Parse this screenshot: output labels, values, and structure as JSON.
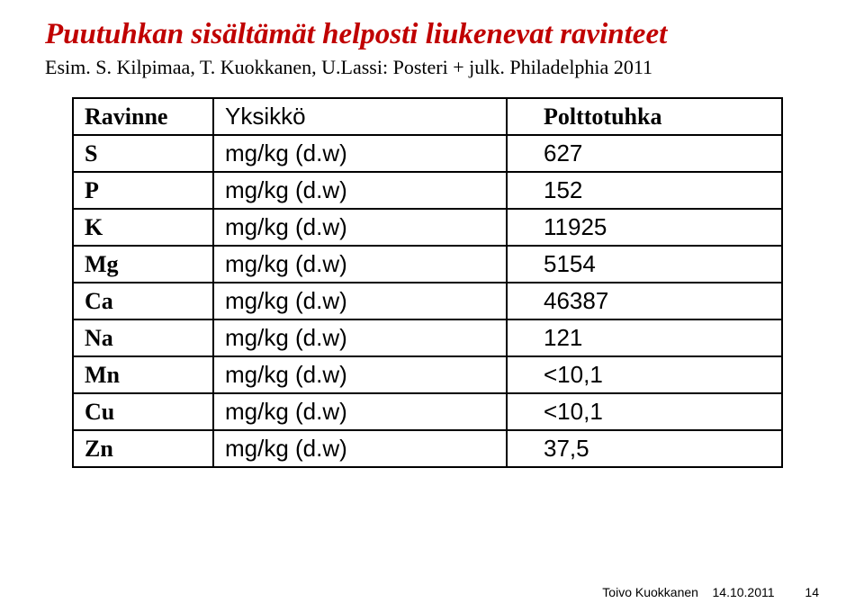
{
  "title": "Puutuhkan sisältämät helposti liukenevat ravinteet",
  "subtitle": "Esim. S. Kilpimaa, T. Kuokkanen, U.Lassi: Posteri + julk. Philadelphia 2011",
  "table": {
    "header": {
      "label": "Ravinne",
      "unit": "Yksikkö",
      "value": "Polttotuhka"
    },
    "rows": [
      {
        "label": "S",
        "unit": "mg/kg (d.w)",
        "value": "627"
      },
      {
        "label": "P",
        "unit": "mg/kg (d.w)",
        "value": "152"
      },
      {
        "label": "K",
        "unit": "mg/kg (d.w)",
        "value": "11925"
      },
      {
        "label": "Mg",
        "unit": "mg/kg (d.w)",
        "value": "5154"
      },
      {
        "label": "Ca",
        "unit": "mg/kg (d.w)",
        "value": "46387"
      },
      {
        "label": "Na",
        "unit": "mg/kg (d.w)",
        "value": "121"
      },
      {
        "label": "Mn",
        "unit": "mg/kg (d.w)",
        "value": "<10,1"
      },
      {
        "label": "Cu",
        "unit": "mg/kg (d.w)",
        "value": "<10,1"
      },
      {
        "label": "Zn",
        "unit": "mg/kg (d.w)",
        "value": " 37,5"
      }
    ]
  },
  "footer": {
    "author": "Toivo Kuokkanen",
    "date": "14.10.2011",
    "page": "14"
  }
}
